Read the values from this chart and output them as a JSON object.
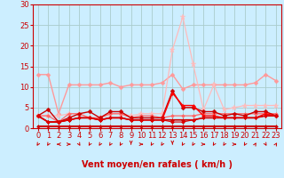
{
  "title": "",
  "xlabel": "Vent moyen/en rafales ( km/h )",
  "xlim": [
    0,
    23
  ],
  "ylim": [
    0,
    30
  ],
  "yticks": [
    0,
    5,
    10,
    15,
    20,
    25,
    30
  ],
  "xticks": [
    0,
    1,
    2,
    3,
    4,
    5,
    6,
    7,
    8,
    9,
    10,
    11,
    12,
    13,
    14,
    15,
    16,
    17,
    18,
    19,
    20,
    21,
    22,
    23
  ],
  "bg_color": "#cceeff",
  "grid_color": "#aacccc",
  "series": [
    {
      "y": [
        13.0,
        13.0,
        3.5,
        10.5,
        10.5,
        10.5,
        10.5,
        11.0,
        10.0,
        10.5,
        10.5,
        10.5,
        11.0,
        13.0,
        9.5,
        10.5,
        10.5,
        10.5,
        10.5,
        10.5,
        10.5,
        11.0,
        13.0,
        11.5
      ],
      "color": "#ff9999",
      "marker": "D",
      "markersize": 2.5,
      "linewidth": 1.0,
      "zorder": 2
    },
    {
      "y": [
        3.0,
        3.0,
        3.0,
        3.5,
        3.5,
        2.5,
        2.5,
        3.5,
        3.5,
        3.0,
        3.5,
        3.5,
        3.5,
        19.0,
        27.0,
        15.5,
        4.5,
        10.5,
        4.5,
        5.0,
        5.5,
        5.5,
        5.5,
        5.5
      ],
      "color": "#ffbbbb",
      "marker": "*",
      "markersize": 4.5,
      "linewidth": 0.9,
      "zorder": 2
    },
    {
      "y": [
        3.0,
        3.0,
        1.5,
        3.5,
        3.5,
        2.5,
        2.5,
        3.5,
        3.5,
        2.5,
        3.0,
        3.0,
        2.5,
        3.0,
        3.0,
        3.0,
        3.5,
        3.5,
        3.5,
        3.5,
        3.5,
        3.5,
        3.5,
        3.5
      ],
      "color": "#ff6666",
      "marker": "D",
      "markersize": 2,
      "linewidth": 0.9,
      "zorder": 3
    },
    {
      "y": [
        3.0,
        4.5,
        1.5,
        2.5,
        3.5,
        4.0,
        2.5,
        4.0,
        4.0,
        2.5,
        2.5,
        2.5,
        2.5,
        9.0,
        5.0,
        5.0,
        4.0,
        4.0,
        3.0,
        3.5,
        3.0,
        4.0,
        4.0,
        3.0
      ],
      "color": "#cc0000",
      "marker": "D",
      "markersize": 2.5,
      "linewidth": 1.0,
      "zorder": 3
    },
    {
      "y": [
        3.0,
        1.5,
        1.5,
        2.0,
        2.5,
        2.5,
        2.0,
        2.5,
        2.5,
        2.0,
        2.0,
        2.0,
        2.0,
        8.5,
        5.5,
        5.5,
        3.0,
        3.0,
        2.5,
        2.5,
        2.5,
        2.5,
        3.5,
        3.0
      ],
      "color": "#ff0000",
      "marker": "D",
      "markersize": 2,
      "linewidth": 1.0,
      "zorder": 3
    },
    {
      "y": [
        3.0,
        1.5,
        1.5,
        2.0,
        2.5,
        2.5,
        2.0,
        2.5,
        2.5,
        2.0,
        2.0,
        2.0,
        2.0,
        2.0,
        2.0,
        2.0,
        2.5,
        2.5,
        2.5,
        2.5,
        2.5,
        2.5,
        3.0,
        3.0
      ],
      "color": "#cc0000",
      "marker": "D",
      "markersize": 2,
      "linewidth": 1.2,
      "zorder": 4
    },
    {
      "y": [
        3.0,
        1.5,
        1.5,
        2.0,
        2.5,
        2.5,
        2.0,
        2.5,
        2.5,
        2.0,
        2.0,
        2.0,
        2.0,
        1.5,
        1.5,
        2.0,
        2.5,
        2.5,
        2.5,
        2.5,
        2.5,
        2.5,
        3.0,
        3.0
      ],
      "color": "#dd0000",
      "marker": "D",
      "markersize": 2,
      "linewidth": 0.8,
      "zorder": 4
    },
    {
      "y": [
        0.5,
        0.5,
        0.5,
        0.5,
        0.5,
        0.5,
        0.5,
        0.5,
        0.5,
        0.5,
        0.5,
        0.5,
        0.5,
        0.5,
        0.5,
        0.5,
        0.5,
        0.5,
        0.5,
        0.5,
        0.5,
        0.5,
        0.5,
        0.5
      ],
      "color": "#cc0000",
      "marker": "D",
      "markersize": 2,
      "linewidth": 1.5,
      "zorder": 5
    }
  ],
  "arrow_color": "#cc0000",
  "arrow_angles": [
    225,
    225,
    270,
    90,
    135,
    225,
    225,
    225,
    225,
    180,
    90,
    225,
    225,
    180,
    225,
    225,
    90,
    225,
    225,
    90,
    225,
    45,
    135,
    45
  ],
  "xlabel_color": "#cc0000",
  "xlabel_fontsize": 7,
  "tick_color": "#cc0000",
  "tick_fontsize": 6
}
